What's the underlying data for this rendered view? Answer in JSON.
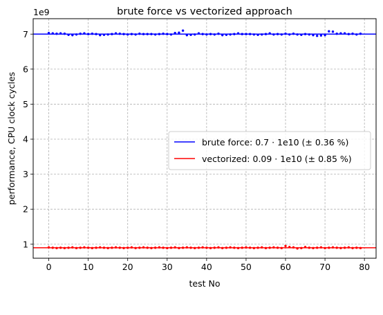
{
  "chart_data": {
    "type": "scatter",
    "title": "brute force vs vectorized approach",
    "xlabel": "test No",
    "ylabel": "performance, CPU clock cycles",
    "offset_label": "1e9",
    "xlim": [
      -3.95,
      82.95
    ],
    "ylim": [
      600000000,
      7440000000
    ],
    "xticks": [
      0,
      10,
      20,
      30,
      40,
      50,
      60,
      70,
      80
    ],
    "yticks": [
      1000000000,
      2000000000,
      3000000000,
      4000000000,
      5000000000,
      6000000000,
      7000000000
    ],
    "ytick_labels": [
      "1",
      "2",
      "3",
      "4",
      "5",
      "6",
      "7"
    ],
    "grid": true,
    "legend_position": "center-right",
    "series": [
      {
        "name": "brute force: 0.7 · 1e10 (± 0.36 %)",
        "color": "#0000ff",
        "mean": 7000000000,
        "x": [
          0,
          1,
          2,
          3,
          4,
          5,
          6,
          7,
          8,
          9,
          10,
          11,
          12,
          13,
          14,
          15,
          16,
          17,
          18,
          19,
          20,
          21,
          22,
          23,
          24,
          25,
          26,
          27,
          28,
          29,
          30,
          31,
          32,
          33,
          34,
          35,
          36,
          37,
          38,
          39,
          40,
          41,
          42,
          43,
          44,
          45,
          46,
          47,
          48,
          49,
          50,
          51,
          52,
          53,
          54,
          55,
          56,
          57,
          58,
          59,
          60,
          61,
          62,
          63,
          64,
          65,
          66,
          67,
          68,
          69,
          70,
          71,
          72,
          73,
          74,
          75,
          76,
          77,
          78,
          79
        ],
        "values": [
          7030000000,
          7020000000,
          7010000000,
          7020000000,
          7010000000,
          6980000000,
          6970000000,
          6990000000,
          7010000000,
          7020000000,
          7000000000,
          7010000000,
          7000000000,
          6970000000,
          6980000000,
          6990000000,
          7000000000,
          7020000000,
          7010000000,
          7000000000,
          6990000000,
          7000000000,
          6990000000,
          7010000000,
          7000000000,
          7000000000,
          7000000000,
          6990000000,
          7000000000,
          7010000000,
          7000000000,
          6990000000,
          7030000000,
          7040000000,
          7100000000,
          6970000000,
          6980000000,
          6990000000,
          7020000000,
          7000000000,
          6990000000,
          7000000000,
          6990000000,
          7010000000,
          6970000000,
          6980000000,
          6990000000,
          7000000000,
          7020000000,
          7000000000,
          7000000000,
          7000000000,
          6990000000,
          6980000000,
          6990000000,
          7000000000,
          7020000000,
          6990000000,
          7000000000,
          6990000000,
          7010000000,
          6990000000,
          7010000000,
          6990000000,
          6980000000,
          7000000000,
          6990000000,
          6970000000,
          6950000000,
          6960000000,
          6970000000,
          7080000000,
          7070000000,
          7010000000,
          7020000000,
          7020000000,
          7000000000,
          7010000000,
          6990000000,
          7010000000
        ]
      },
      {
        "name": "vectorized: 0.09 · 1e10 (± 0.85 %)",
        "color": "#ff0000",
        "mean": 900000000,
        "x": [
          0,
          1,
          2,
          3,
          4,
          5,
          6,
          7,
          8,
          9,
          10,
          11,
          12,
          13,
          14,
          15,
          16,
          17,
          18,
          19,
          20,
          21,
          22,
          23,
          24,
          25,
          26,
          27,
          28,
          29,
          30,
          31,
          32,
          33,
          34,
          35,
          36,
          37,
          38,
          39,
          40,
          41,
          42,
          43,
          44,
          45,
          46,
          47,
          48,
          49,
          50,
          51,
          52,
          53,
          54,
          55,
          56,
          57,
          58,
          59,
          60,
          61,
          62,
          63,
          64,
          65,
          66,
          67,
          68,
          69,
          70,
          71,
          72,
          73,
          74,
          75,
          76,
          77,
          78,
          79
        ],
        "values": [
          910000000,
          900000000,
          890000000,
          900000000,
          890000000,
          900000000,
          910000000,
          890000000,
          900000000,
          910000000,
          900000000,
          890000000,
          900000000,
          910000000,
          900000000,
          890000000,
          900000000,
          910000000,
          900000000,
          890000000,
          900000000,
          910000000,
          890000000,
          900000000,
          910000000,
          900000000,
          890000000,
          900000000,
          910000000,
          900000000,
          890000000,
          900000000,
          910000000,
          890000000,
          900000000,
          910000000,
          900000000,
          890000000,
          900000000,
          910000000,
          900000000,
          890000000,
          900000000,
          910000000,
          890000000,
          900000000,
          910000000,
          900000000,
          890000000,
          900000000,
          910000000,
          900000000,
          890000000,
          900000000,
          910000000,
          890000000,
          900000000,
          910000000,
          900000000,
          890000000,
          950000000,
          920000000,
          910000000,
          880000000,
          890000000,
          920000000,
          900000000,
          890000000,
          900000000,
          910000000,
          890000000,
          900000000,
          910000000,
          900000000,
          890000000,
          900000000,
          910000000,
          890000000,
          900000000,
          890000000
        ]
      }
    ]
  }
}
